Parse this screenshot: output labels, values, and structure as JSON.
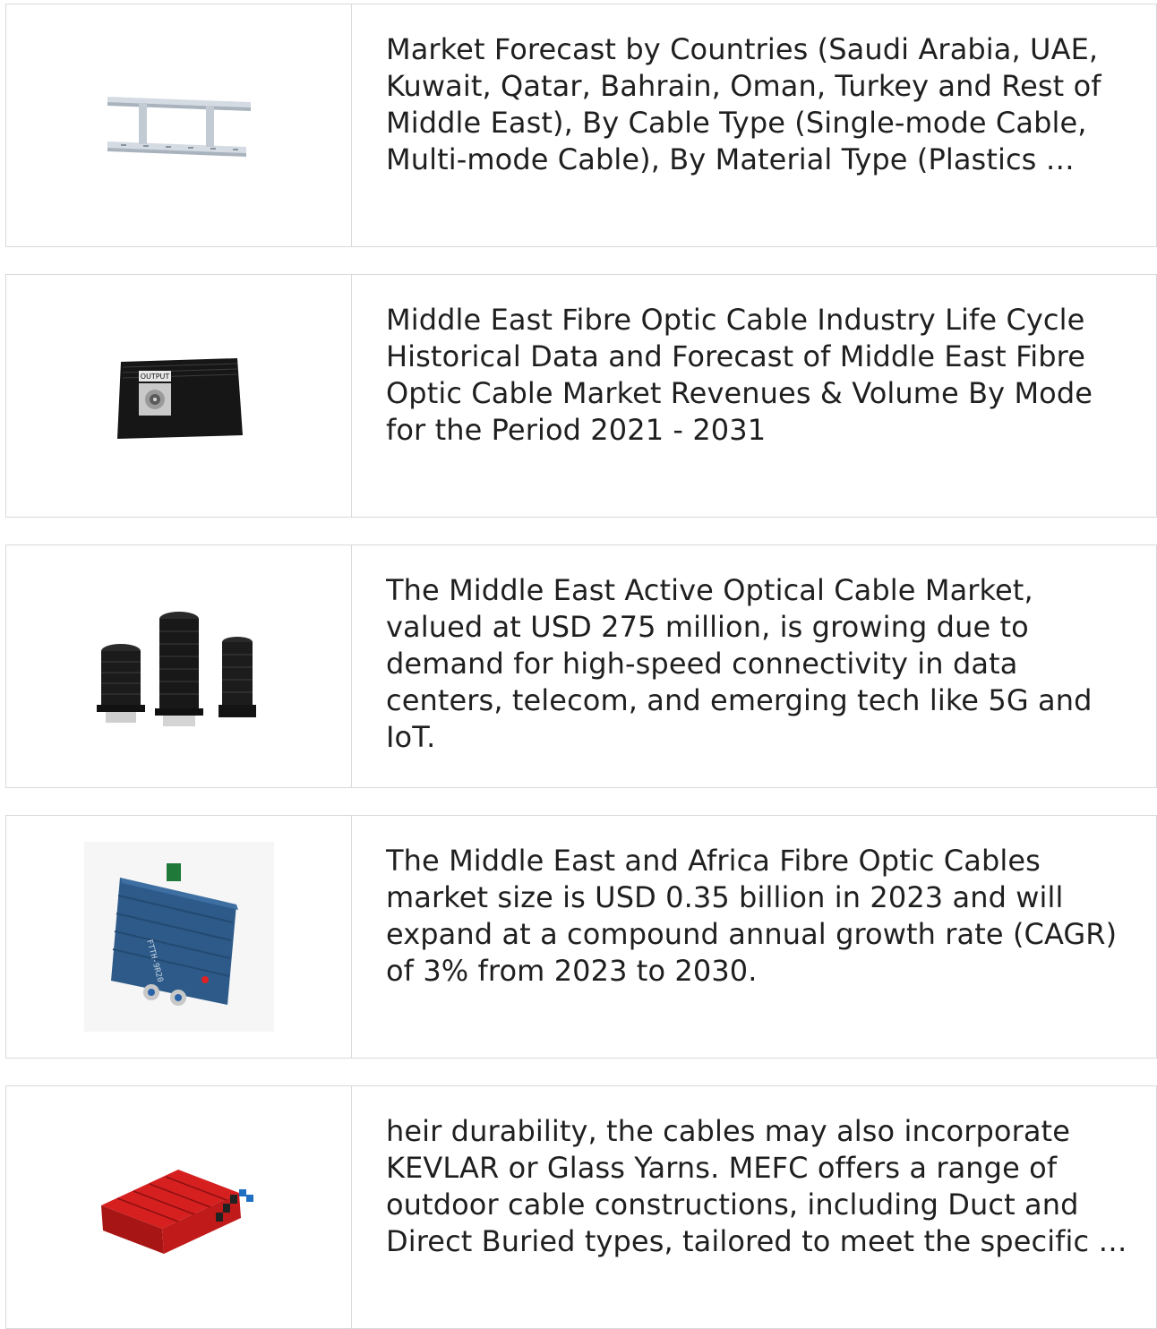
{
  "results": [
    {
      "image_icon": "cable-tray-icon",
      "snippet": "Market Forecast by Countries (Saudi Arabia, UAE, Kuwait, Qatar, Bahrain, Oman, Turkey and Rest of Middle East), By Cable Type (Single-mode Cable, Multi-mode Cable), By Material Type (Plastics …"
    },
    {
      "image_icon": "optical-output-box-icon",
      "image_label": "OUTPUT",
      "snippet": "Middle East Fibre Optic Cable Industry Life Cycle Historical Data and Forecast of Middle East Fibre Optic Cable Market Revenues & Volume By Mode for the Period 2021 - 2031"
    },
    {
      "image_icon": "splice-closures-icon",
      "snippet": "The Middle East Active Optical Cable Market, valued at USD 275 million, is growing due to demand for high-speed connectivity in data centers, telecom, and emerging tech like 5G and IoT."
    },
    {
      "image_icon": "optical-receiver-icon",
      "image_label": "FTTH-9R20",
      "snippet": "The Middle East and Africa Fibre Optic Cables market size is USD 0.35 billion in 2023 and will expand at a compound annual growth rate (CAGR) of 3% from 2023 to 2030."
    },
    {
      "image_icon": "distribution-box-icon",
      "snippet": "heir durability, the cables may also incorporate KEVLAR or Glass Yarns. MEFC offers a range of outdoor cable constructions, including Duct and Direct Buried types, tailored to meet the specific …"
    }
  ]
}
